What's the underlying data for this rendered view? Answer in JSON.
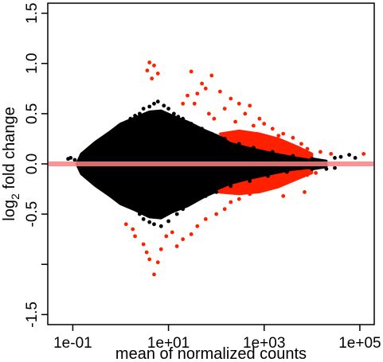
{
  "chart_data": {
    "type": "scatter",
    "title": "",
    "xlabel": "mean of normalized counts",
    "ylabel": "log2 fold change",
    "ylabel_parts": {
      "base": "log",
      "subscript": "2",
      "rest": " fold change"
    },
    "x_scale": "log",
    "xlim": [
      0.03,
      200000
    ],
    "ylim": [
      -1.6,
      1.6
    ],
    "x_ticks": [
      {
        "value": 0.1,
        "label": "1e-01"
      },
      {
        "value": 10,
        "label": "1e+01"
      },
      {
        "value": 1000,
        "label": "1e+03"
      },
      {
        "value": 100000,
        "label": "1e+05"
      }
    ],
    "y_ticks": [
      {
        "value": -1.5,
        "label": "-1.5"
      },
      {
        "value": -1.0,
        "label": ""
      },
      {
        "value": -0.5,
        "label": "-0.5"
      },
      {
        "value": 0.0,
        "label": "0.0"
      },
      {
        "value": 0.5,
        "label": "0.5"
      },
      {
        "value": 1.0,
        "label": "1.0"
      },
      {
        "value": 1.5,
        "label": "1.5"
      }
    ],
    "grid": false,
    "reference_line": {
      "y": 0,
      "color": "#ff8080"
    },
    "series": [
      {
        "color": "#000000",
        "note_points": "not significant genes",
        "points": [
          [
            0.08,
            0.05
          ],
          [
            0.09,
            0.06
          ],
          [
            0.11,
            0.04
          ],
          [
            0.15,
            0.08
          ],
          [
            0.2,
            0.09
          ],
          [
            0.25,
            0.12
          ],
          [
            0.3,
            0.15
          ],
          [
            0.4,
            0.2
          ],
          [
            0.5,
            0.22
          ],
          [
            0.6,
            0.27
          ],
          [
            0.8,
            0.3
          ],
          [
            1,
            0.35
          ],
          [
            1.3,
            0.4
          ],
          [
            1.6,
            0.45
          ],
          [
            2,
            0.48
          ],
          [
            2.5,
            0.5
          ],
          [
            3,
            0.55
          ],
          [
            4,
            0.57
          ],
          [
            5,
            0.6
          ],
          [
            6,
            0.62
          ],
          [
            8,
            0.58
          ],
          [
            10,
            0.55
          ],
          [
            13,
            0.5
          ],
          [
            16,
            0.47
          ],
          [
            20,
            0.45
          ],
          [
            30,
            0.4
          ],
          [
            50,
            0.35
          ],
          [
            80,
            0.3
          ],
          [
            150,
            0.25
          ],
          [
            300,
            0.2
          ],
          [
            600,
            0.16
          ],
          [
            1500,
            0.12
          ],
          [
            4000,
            0.08
          ],
          [
            10000,
            0.05
          ],
          [
            0.15,
            -0.06
          ],
          [
            0.2,
            -0.09
          ],
          [
            0.3,
            -0.14
          ],
          [
            0.5,
            -0.2
          ],
          [
            0.8,
            -0.28
          ],
          [
            1,
            -0.32
          ],
          [
            1.5,
            -0.38
          ],
          [
            2,
            -0.45
          ],
          [
            2.5,
            -0.5
          ],
          [
            3,
            -0.55
          ],
          [
            4,
            -0.58
          ],
          [
            5,
            -0.6
          ],
          [
            7,
            -0.62
          ],
          [
            10,
            -0.57
          ],
          [
            15,
            -0.5
          ],
          [
            20,
            -0.45
          ],
          [
            30,
            -0.38
          ],
          [
            60,
            -0.32
          ],
          [
            100,
            -0.28
          ],
          [
            200,
            -0.22
          ],
          [
            500,
            -0.17
          ],
          [
            1200,
            -0.12
          ],
          [
            3000,
            -0.08
          ],
          [
            10000,
            -0.05
          ],
          [
            30000,
            0.06
          ],
          [
            40000,
            0.07
          ],
          [
            60000,
            0.09
          ],
          [
            80000,
            0.06
          ],
          [
            20000,
            -0.05
          ],
          [
            30000,
            -0.04
          ]
        ]
      },
      {
        "color": "#ff2000",
        "note_points": "significant genes",
        "points": [
          [
            4,
            1.01
          ],
          [
            5,
            0.98
          ],
          [
            3.6,
            0.93
          ],
          [
            6,
            0.9
          ],
          [
            4.5,
            0.85
          ],
          [
            30,
            0.92
          ],
          [
            80,
            0.88
          ],
          [
            60,
            0.75
          ],
          [
            50,
            0.8
          ],
          [
            40,
            0.7
          ],
          [
            120,
            0.72
          ],
          [
            200,
            0.65
          ],
          [
            300,
            0.6
          ],
          [
            500,
            0.58
          ],
          [
            150,
            0.55
          ],
          [
            400,
            0.5
          ],
          [
            800,
            0.45
          ],
          [
            1000,
            0.4
          ],
          [
            1500,
            0.35
          ],
          [
            2500,
            0.3
          ],
          [
            4000,
            0.26
          ],
          [
            3000,
            0.2
          ],
          [
            6000,
            0.2
          ],
          [
            8000,
            0.15
          ],
          [
            15000,
            0.12
          ],
          [
            25000,
            0.1
          ],
          [
            120000,
            0.1
          ],
          [
            20,
            0.6
          ],
          [
            25,
            0.68
          ],
          [
            35,
            0.6
          ],
          [
            70,
            0.5
          ],
          [
            90,
            0.45
          ],
          [
            250,
            0.42
          ],
          [
            600,
            0.38
          ],
          [
            700,
            0.3
          ],
          [
            2000,
            0.28
          ],
          [
            1.3,
            -0.6
          ],
          [
            1.8,
            -0.65
          ],
          [
            2,
            -0.72
          ],
          [
            3,
            -0.8
          ],
          [
            3.5,
            -0.88
          ],
          [
            4,
            -0.95
          ],
          [
            5,
            -1.1
          ],
          [
            6,
            -0.98
          ],
          [
            15,
            -0.82
          ],
          [
            20,
            -0.75
          ],
          [
            30,
            -0.7
          ],
          [
            40,
            -0.62
          ],
          [
            60,
            -0.55
          ],
          [
            100,
            -0.5
          ],
          [
            150,
            -0.45
          ],
          [
            200,
            -0.38
          ],
          [
            300,
            -0.35
          ],
          [
            500,
            -0.3
          ],
          [
            800,
            -0.27
          ],
          [
            1200,
            -0.24
          ],
          [
            2000,
            -0.2
          ],
          [
            3000,
            -0.17
          ],
          [
            5000,
            -0.13
          ],
          [
            8000,
            -0.11
          ],
          [
            12000,
            -0.09
          ],
          [
            7000,
            -0.28
          ],
          [
            2500,
            -0.32
          ],
          [
            12,
            -0.68
          ],
          [
            9,
            -0.72
          ],
          [
            7,
            -0.85
          ]
        ]
      }
    ],
    "dense_regions": [
      {
        "color": "#000000",
        "note": "dense cloud of not-significant genes",
        "outline": [
          [
            0.12,
            0.0
          ],
          [
            0.15,
            0.1
          ],
          [
            0.3,
            0.22
          ],
          [
            0.6,
            0.32
          ],
          [
            1,
            0.4
          ],
          [
            2,
            0.46
          ],
          [
            4,
            0.52
          ],
          [
            7,
            0.53
          ],
          [
            12,
            0.48
          ],
          [
            25,
            0.42
          ],
          [
            60,
            0.33
          ],
          [
            150,
            0.25
          ],
          [
            400,
            0.18
          ],
          [
            1000,
            0.13
          ],
          [
            3000,
            0.09
          ],
          [
            8000,
            0.06
          ],
          [
            20000,
            0.03
          ],
          [
            20000,
            -0.03
          ],
          [
            8000,
            -0.06
          ],
          [
            3000,
            -0.08
          ],
          [
            1000,
            -0.12
          ],
          [
            400,
            -0.17
          ],
          [
            150,
            -0.24
          ],
          [
            60,
            -0.32
          ],
          [
            25,
            -0.42
          ],
          [
            12,
            -0.48
          ],
          [
            7,
            -0.54
          ],
          [
            4,
            -0.53
          ],
          [
            2,
            -0.46
          ],
          [
            1,
            -0.4
          ],
          [
            0.6,
            -0.32
          ],
          [
            0.3,
            -0.22
          ],
          [
            0.15,
            -0.1
          ]
        ]
      },
      {
        "color": "#ff2000",
        "note": "dense cluster of significant genes (upper)",
        "outline": [
          [
            120,
            0.3
          ],
          [
            300,
            0.33
          ],
          [
            800,
            0.3
          ],
          [
            2000,
            0.25
          ],
          [
            5000,
            0.17
          ],
          [
            10000,
            0.1
          ],
          [
            10000,
            0.06
          ],
          [
            4000,
            0.09
          ],
          [
            1500,
            0.13
          ],
          [
            500,
            0.18
          ],
          [
            200,
            0.23
          ]
        ]
      },
      {
        "color": "#ff2000",
        "note": "dense cluster of significant genes (lower)",
        "outline": [
          [
            100,
            -0.28
          ],
          [
            300,
            -0.3
          ],
          [
            800,
            -0.28
          ],
          [
            2000,
            -0.23
          ],
          [
            5000,
            -0.15
          ],
          [
            10000,
            -0.09
          ],
          [
            10000,
            -0.06
          ],
          [
            4000,
            -0.08
          ],
          [
            1500,
            -0.12
          ],
          [
            500,
            -0.17
          ],
          [
            200,
            -0.22
          ]
        ]
      }
    ]
  }
}
